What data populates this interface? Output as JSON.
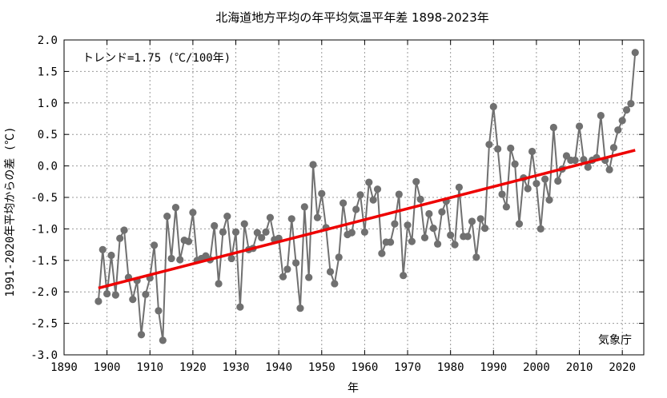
{
  "chart_data": {
    "type": "line",
    "title": "北海道地方平均の年平均気温平年差  1898-2023年",
    "xlabel": "年",
    "ylabel": "1991-2020年平均からの差 (℃)",
    "xlim": [
      1890,
      2025
    ],
    "ylim": [
      -3.0,
      2.0
    ],
    "xticks": [
      1890,
      1900,
      1910,
      1920,
      1930,
      1940,
      1950,
      1960,
      1970,
      1980,
      1990,
      2000,
      2010,
      2020
    ],
    "yticks": [
      -3.0,
      -2.5,
      -2.0,
      -1.5,
      -1.0,
      -0.5,
      0.0,
      0.5,
      1.0,
      1.5,
      2.0
    ],
    "xtick_labels": [
      "1890",
      "1900",
      "1910",
      "1920",
      "1930",
      "1940",
      "1950",
      "1960",
      "1970",
      "1980",
      "1990",
      "2000",
      "2010",
      "2020"
    ],
    "ytick_labels": [
      "-3.0",
      "-2.5",
      "-2.0",
      "-1.5",
      "-1.0",
      "-0.5",
      "0.0",
      "0.5",
      "1.0",
      "1.5",
      "2.0"
    ],
    "grid": true,
    "trend_label": "トレンド=1.75 (℃/100年)",
    "source": "気象庁",
    "colors": {
      "series": "#707070",
      "trend": "#ee0000",
      "grid": "#999999"
    },
    "x": [
      1898,
      1899,
      1900,
      1901,
      1902,
      1903,
      1904,
      1905,
      1906,
      1907,
      1908,
      1909,
      1910,
      1911,
      1912,
      1913,
      1914,
      1915,
      1916,
      1917,
      1918,
      1919,
      1920,
      1921,
      1922,
      1923,
      1924,
      1925,
      1926,
      1927,
      1928,
      1929,
      1930,
      1931,
      1932,
      1933,
      1934,
      1935,
      1936,
      1937,
      1938,
      1939,
      1940,
      1941,
      1942,
      1943,
      1944,
      1945,
      1946,
      1947,
      1948,
      1949,
      1950,
      1951,
      1952,
      1953,
      1954,
      1955,
      1956,
      1957,
      1958,
      1959,
      1960,
      1961,
      1962,
      1963,
      1964,
      1965,
      1966,
      1967,
      1968,
      1969,
      1970,
      1971,
      1972,
      1973,
      1974,
      1975,
      1976,
      1977,
      1978,
      1979,
      1980,
      1981,
      1982,
      1983,
      1984,
      1985,
      1986,
      1987,
      1988,
      1989,
      1990,
      1991,
      1992,
      1993,
      1994,
      1995,
      1996,
      1997,
      1998,
      1999,
      2000,
      2001,
      2002,
      2003,
      2004,
      2005,
      2006,
      2007,
      2008,
      2009,
      2010,
      2011,
      2012,
      2013,
      2014,
      2015,
      2016,
      2017,
      2018,
      2019,
      2020,
      2021,
      2022,
      2023
    ],
    "series": [
      {
        "values": [
          -2.15,
          -1.33,
          -2.03,
          -1.42,
          -2.05,
          -1.15,
          -1.02,
          -1.77,
          -2.12,
          -1.82,
          -2.68,
          -2.04,
          -1.78,
          -1.26,
          -2.3,
          -2.77,
          -0.8,
          -1.47,
          -0.66,
          -1.49,
          -1.18,
          -1.2,
          -0.74,
          -1.5,
          -1.47,
          -1.43,
          -1.49,
          -0.95,
          -1.87,
          -1.05,
          -0.8,
          -1.47,
          -1.05,
          -2.24,
          -0.92,
          -1.33,
          -1.31,
          -1.06,
          -1.14,
          -1.05,
          -0.82,
          -1.17,
          -1.15,
          -1.76,
          -1.64,
          -0.84,
          -1.54,
          -2.26,
          -0.65,
          -1.77,
          0.02,
          -0.82,
          -0.44,
          -0.98,
          -1.68,
          -1.87,
          -1.45,
          -0.59,
          -1.09,
          -1.06,
          -0.69,
          -0.46,
          -1.05,
          -0.26,
          -0.54,
          -0.37,
          -1.39,
          -1.21,
          -1.21,
          -0.92,
          -0.45,
          -1.74,
          -0.94,
          -1.2,
          -0.25,
          -0.53,
          -1.14,
          -0.76,
          -0.99,
          -1.24,
          -0.73,
          -0.56,
          -1.1,
          -1.25,
          -0.34,
          -1.12,
          -1.12,
          -0.88,
          -1.45,
          -0.84,
          -0.99,
          0.34,
          0.94,
          0.27,
          -0.45,
          -0.65,
          0.28,
          0.03,
          -0.92,
          -0.19,
          -0.36,
          0.23,
          -0.28,
          -1.0,
          -0.21,
          -0.54,
          0.61,
          -0.24,
          -0.05,
          0.16,
          0.09,
          0.09,
          0.63,
          0.1,
          -0.02,
          0.09,
          0.13,
          0.8,
          0.09,
          -0.06,
          0.29,
          0.57,
          0.72,
          0.89,
          0.99,
          1.8
        ]
      }
    ],
    "trend": {
      "x": [
        1898,
        2023
      ],
      "y": [
        -1.94,
        0.25
      ]
    }
  }
}
